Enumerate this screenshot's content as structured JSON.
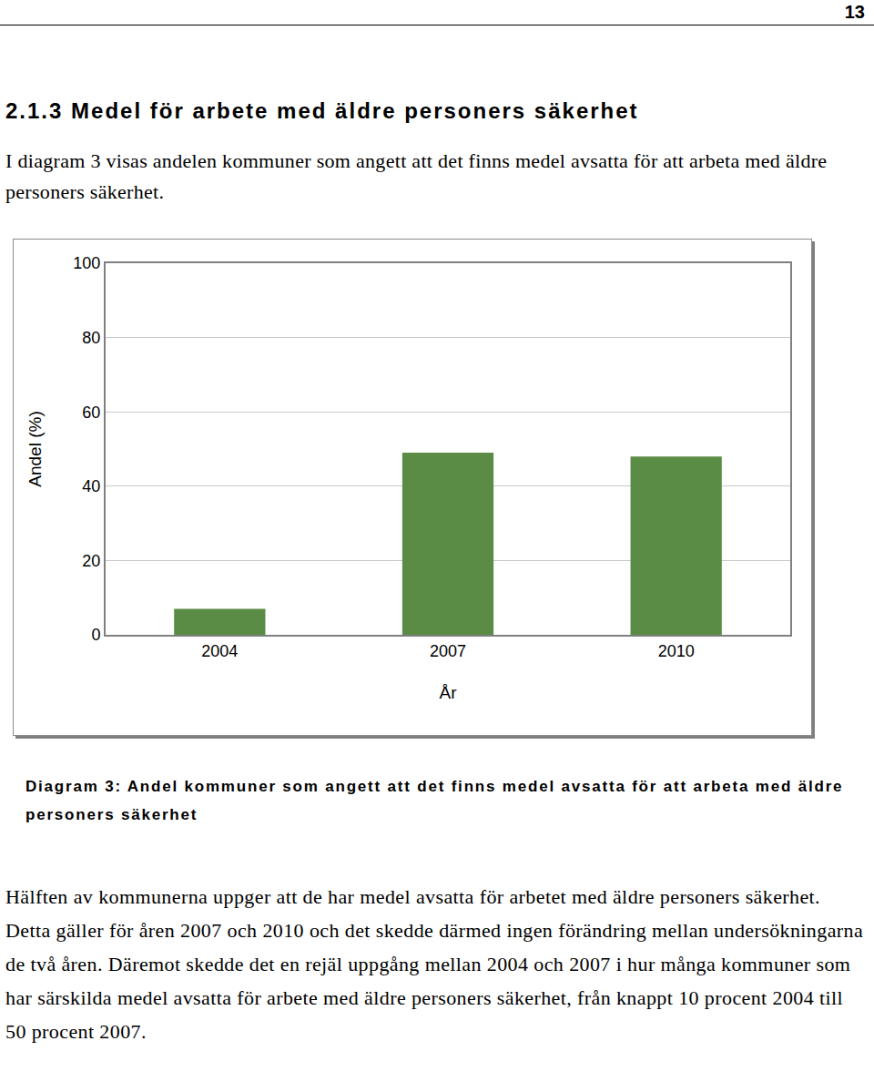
{
  "page_number": "13",
  "heading": "2.1.3 Medel för arbete med äldre personers säkerhet",
  "intro": "I diagram 3 visas andelen kommuner som angett att det finns medel avsatta för att arbeta med äldre personers säkerhet.",
  "chart_data": {
    "type": "bar",
    "categories": [
      "2004",
      "2007",
      "2010"
    ],
    "values": [
      7,
      49,
      48
    ],
    "color": "#5b8c45",
    "xlabel": "År",
    "ylabel": "Andel (%)",
    "ylim": [
      0,
      100
    ],
    "yticks": [
      0,
      20,
      40,
      60,
      80,
      100
    ],
    "grid": true
  },
  "caption": "Diagram 3: Andel kommuner som angett att det finns medel avsatta för att arbeta med äldre personers säkerhet",
  "body": "Hälften av kommunerna uppger att de har medel avsatta för arbetet med äldre personers säkerhet. Detta gäller för åren 2007 och 2010 och det skedde därmed ingen förändring mellan undersökningarna de två åren. Däremot skedde det en rejäl uppgång mellan 2004 och 2007 i hur många kommuner som har särskilda medel avsatta för arbete med äldre personers säkerhet, från knappt 10 procent 2004 till 50 procent 2007."
}
